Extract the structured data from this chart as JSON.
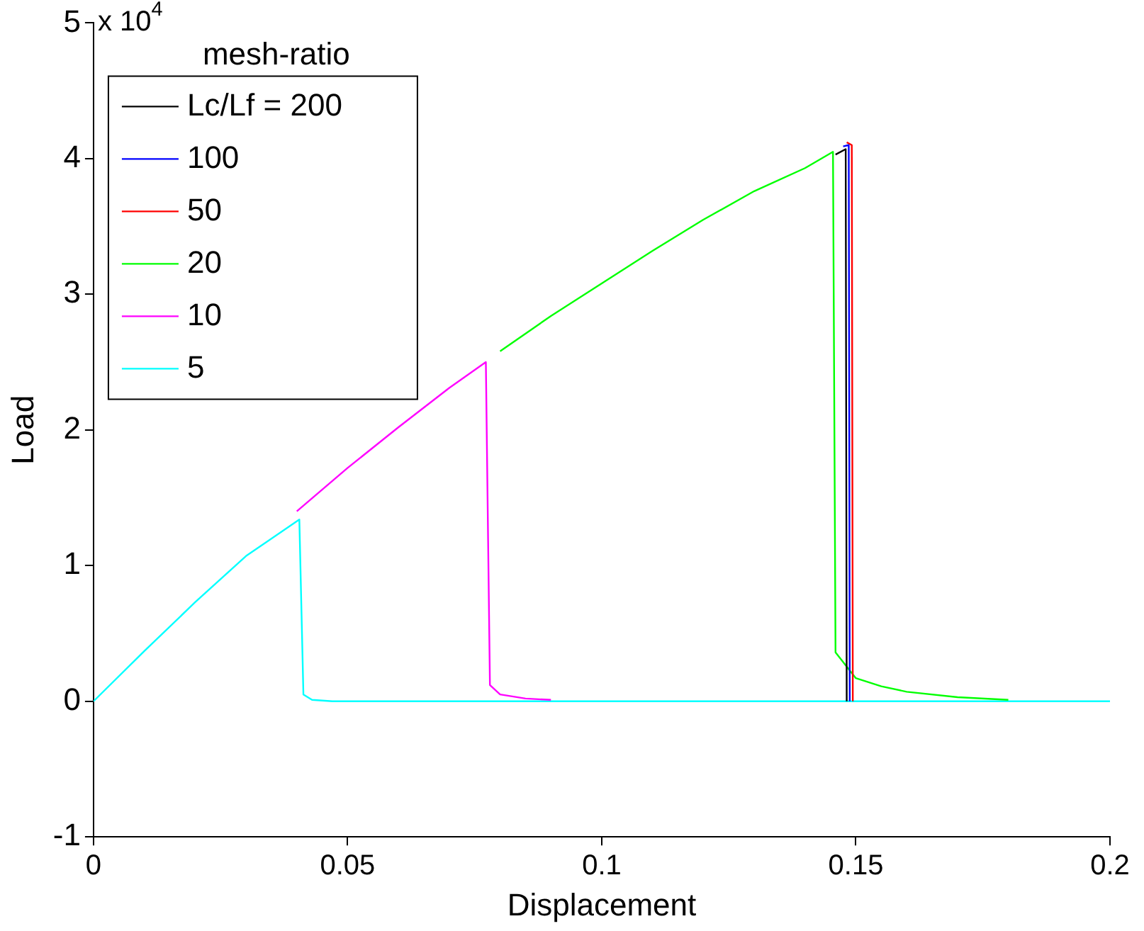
{
  "chart_data": {
    "type": "line",
    "xlabel": "Displacement",
    "ylabel": "Load",
    "legend_title": "mesh-ratio",
    "legend": "top left",
    "grid": false,
    "marker": "none",
    "line_style": "solid",
    "xlim": [
      0,
      0.2
    ],
    "xticks": [
      0,
      0.05,
      0.1,
      0.15,
      0.2
    ],
    "ylim": [
      -1,
      5
    ],
    "yticks": [
      -1,
      0,
      1,
      2,
      3,
      4,
      5
    ],
    "annotations": [
      "x 10$^{4}$"
    ],
    "series": [
      {
        "name": "Lc/Lf = 200",
        "color": "#000000",
        "x": [
          0.146,
          0.148,
          0.1482
        ],
        "values": [
          4.03,
          4.07,
          0
        ]
      },
      {
        "name": "100",
        "color": "#0000ff",
        "x": [
          0.1475,
          0.1486,
          0.1488
        ],
        "values": [
          4.09,
          4.1,
          0
        ]
      },
      {
        "name": "50",
        "color": "#ff0000",
        "x": [
          0.1482,
          0.1492,
          0.1494
        ],
        "values": [
          4.12,
          4.1,
          0
        ]
      },
      {
        "name": "20",
        "color": "#00ff00",
        "x": [
          0.08,
          0.09,
          0.1,
          0.11,
          0.12,
          0.13,
          0.14,
          0.1455,
          0.146,
          0.15,
          0.155,
          0.16,
          0.17,
          0.18
        ],
        "values": [
          2.58,
          2.84,
          3.08,
          3.32,
          3.55,
          3.76,
          3.93,
          4.05,
          0.36,
          0.17,
          0.11,
          0.07,
          0.03,
          0.01
        ]
      },
      {
        "name": "10",
        "color": "#ff00ff",
        "x": [
          0.04,
          0.05,
          0.06,
          0.07,
          0.0772,
          0.078,
          0.08,
          0.085,
          0.09
        ],
        "values": [
          1.4,
          1.72,
          2.02,
          2.31,
          2.5,
          0.12,
          0.05,
          0.02,
          0.01
        ]
      },
      {
        "name": "5",
        "color": "#00ffff",
        "x": [
          0,
          0.01,
          0.02,
          0.03,
          0.0405,
          0.0413,
          0.043,
          0.047,
          0.2
        ],
        "values": [
          0,
          0.37,
          0.73,
          1.07,
          1.34,
          0.05,
          0.01,
          0,
          0
        ]
      }
    ]
  }
}
